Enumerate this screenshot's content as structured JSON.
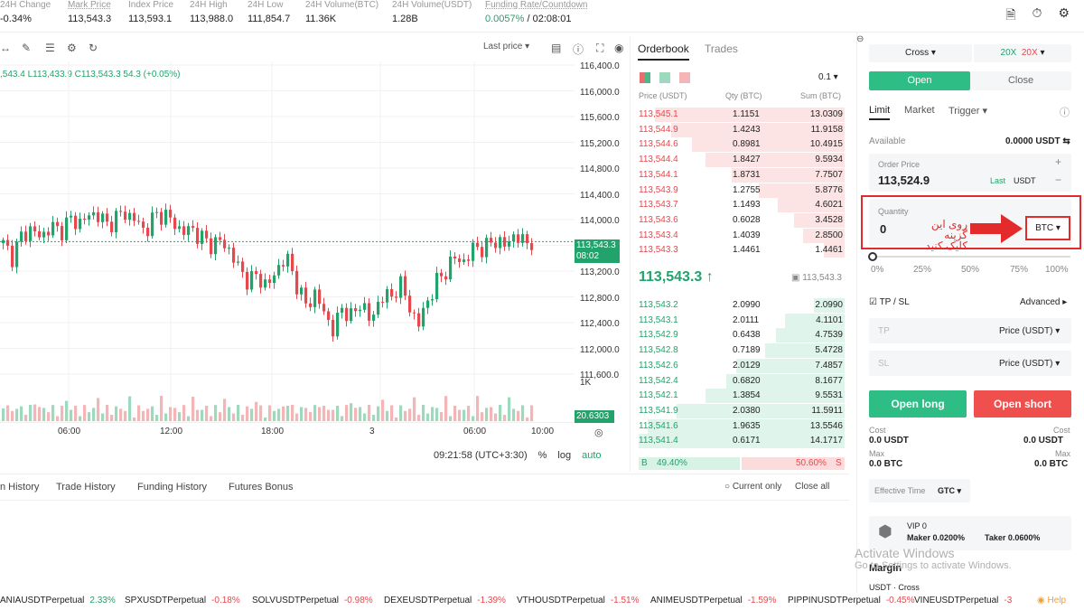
{
  "top_stats": [
    {
      "label": "24H Change",
      "value": "-0.34%"
    },
    {
      "label": "Mark Price",
      "value": "113,543.3"
    },
    {
      "label": "Index Price",
      "value": "113,593.1"
    },
    {
      "label": "24H High",
      "value": "113,988.0"
    },
    {
      "label": "24H Low",
      "value": "111,854.7"
    },
    {
      "label": "24H Volume(BTC)",
      "value": "11.36K"
    },
    {
      "label": "24H Volume(USDT)",
      "value": "1.28B"
    },
    {
      "label": "Funding Rate/Countdown",
      "value_rate": "0.0057%",
      "value_countdown": "/ 02:08:01"
    }
  ],
  "top_icons": [
    "document-icon",
    "stopwatch-icon",
    "settings-icon"
  ],
  "chart": {
    "price_mode": "Last price",
    "ohlc_text": ",543.4  L113,433.9  C113,543.3  54.3 (+0.05%)",
    "price_tag": {
      "price": "113,543.3",
      "time": "08:02"
    },
    "volume_tag": "20.6303",
    "volume_axis_label": "1K",
    "time": "09:21:58 (UTC+3:30)",
    "scale_buttons": [
      "%",
      "log",
      "auto"
    ]
  },
  "chart_data": {
    "type": "candlestick",
    "y_ticks": [
      "116,400.0",
      "116,000.0",
      "115,600.0",
      "115,200.0",
      "114,800.0",
      "114,400.0",
      "114,000.0",
      "113,600.0",
      "113,200.0",
      "112,800.0",
      "112,400.0",
      "112,000.0",
      "111,600.0"
    ],
    "x_ticks": [
      "06:00",
      "12:00",
      "18:00",
      "3",
      "06:00",
      "10:00"
    ],
    "ylim": [
      111400,
      116400
    ],
    "closes": [
      113500,
      113300,
      113650,
      113750,
      113600,
      113800,
      113700,
      113900,
      113850,
      113950,
      114000,
      113800,
      113950,
      114000,
      113900,
      113700,
      113950,
      114000,
      113850,
      113700,
      113750,
      113600,
      113500,
      113550,
      113400,
      113100,
      112900,
      113000,
      112800,
      113100,
      113300,
      112900,
      112500,
      112700,
      112400,
      112100,
      112500,
      112300,
      112600,
      112200,
      112700,
      112600,
      112900,
      112500,
      112200,
      112600,
      112900,
      113100,
      113300,
      113200,
      113500,
      113400,
      113600,
      113450,
      113650,
      113550,
      113543
    ],
    "volume_note": "volume bars at bottom"
  },
  "orderbook": {
    "tabs": [
      "Orderbook",
      "Trades"
    ],
    "precision": "0.1",
    "headers": [
      "Price (USDT)",
      "Qty (BTC)",
      "Sum (BTC)"
    ],
    "asks": [
      [
        "113,545.1",
        "1.1151",
        "13.0309"
      ],
      [
        "113,544.9",
        "1.4243",
        "11.9158"
      ],
      [
        "113,544.6",
        "0.8981",
        "10.4915"
      ],
      [
        "113,544.4",
        "1.8427",
        "9.5934"
      ],
      [
        "113,544.1",
        "1.8731",
        "7.7507"
      ],
      [
        "113,543.9",
        "1.2755",
        "5.8776"
      ],
      [
        "113,543.7",
        "1.1493",
        "4.6021"
      ],
      [
        "113,543.6",
        "0.6028",
        "3.4528"
      ],
      [
        "113,543.4",
        "1.4039",
        "2.8500"
      ],
      [
        "113,543.3",
        "1.4461",
        "1.4461"
      ]
    ],
    "mid_price": "113,543.3 ↑",
    "mark_price": "113,543.3",
    "bids": [
      [
        "113,543.2",
        "2.0990",
        "2.0990"
      ],
      [
        "113,543.1",
        "2.0111",
        "4.1101"
      ],
      [
        "113,542.9",
        "0.6438",
        "4.7539"
      ],
      [
        "113,542.8",
        "0.7189",
        "5.4728"
      ],
      [
        "113,542.6",
        "2.0129",
        "7.4857"
      ],
      [
        "113,542.4",
        "0.6820",
        "8.1677"
      ],
      [
        "113,542.1",
        "1.3854",
        "9.5531"
      ],
      [
        "113,541.9",
        "2.0380",
        "11.5911"
      ],
      [
        "113,541.6",
        "1.9635",
        "13.5546"
      ],
      [
        "113,541.4",
        "0.6171",
        "14.1717"
      ]
    ],
    "buy_ratio": "49.40%",
    "sell_ratio": "50.60%",
    "buy_badge": "B",
    "sell_badge": "S"
  },
  "bottom_tabs": [
    "n History",
    "Trade History",
    "Funding History",
    "Futures Bonus"
  ],
  "current_only": "Current only",
  "close_all": "Close all",
  "ticker": [
    {
      "symbol": "ANIAUSDTPerpetual",
      "change": "2.33%",
      "dir": "up"
    },
    {
      "symbol": "SPXUSDTPerpetual",
      "change": "-0.18%",
      "dir": "down"
    },
    {
      "symbol": "SOLVUSDTPerpetual",
      "change": "-0.98%",
      "dir": "down"
    },
    {
      "symbol": "DEXEUSDTPerpetual",
      "change": "-1.39%",
      "dir": "down"
    },
    {
      "symbol": "VTHOUSDTPerpetual",
      "change": "-1.51%",
      "dir": "down"
    },
    {
      "symbol": "ANIMEUSDTPerpetual",
      "change": "-1.59%",
      "dir": "down"
    },
    {
      "symbol": "PIPPINUSDTPerpetual",
      "change": "-0.45%",
      "dir": "down"
    },
    {
      "symbol": "VINEUSDTPerpetual",
      "change": "-3",
      "dir": "down"
    }
  ],
  "help": "Help",
  "panel": {
    "margin_mode": "Cross",
    "leverage_long": "20X",
    "leverage_short": "20X",
    "open_label": "Open",
    "close_label": "Close",
    "order_types": [
      "Limit",
      "Market",
      "Trigger"
    ],
    "available_label": "Available",
    "available_value": "0.0000 USDT",
    "order_price_label": "Order Price",
    "order_price_value": "113,524.9",
    "last_label": "Last",
    "price_unit": "USDT",
    "quantity_label": "Quantity",
    "quantity_value": "0",
    "quantity_unit": "BTC",
    "annotation_line1": "روی این گزینه",
    "annotation_line2": "کلیک کنید",
    "slider_marks": [
      "0%",
      "25%",
      "50%",
      "75%",
      "100%"
    ],
    "tpsl_label": "TP / SL",
    "advanced_label": "Advanced",
    "tp_placeholder": "TP",
    "sl_placeholder": "SL",
    "tp_unit": "Price (USDT)",
    "sl_unit": "Price (USDT)",
    "open_long": "Open long",
    "open_short": "Open short",
    "cost_label": "Cost",
    "cost_long": "0.0 USDT",
    "cost_short": "0.0 USDT",
    "max_label": "Max",
    "max_long": "0.0 BTC",
    "max_short": "0.0 BTC",
    "effective_time_label": "Effective Time",
    "effective_time_value": "GTC",
    "vip_label": "VIP 0",
    "maker_fee": "Maker 0.0200%",
    "taker_fee": "Taker 0.0600%",
    "margin_label": "Margin",
    "margin_mode_label": "USDT · Cross"
  },
  "watermark": {
    "line1": "Activate Windows",
    "line2": "Go to Settings to activate Windows."
  },
  "colors": {
    "up": "#21a36b",
    "down": "#e5484d",
    "accent": "#2ebd85"
  }
}
